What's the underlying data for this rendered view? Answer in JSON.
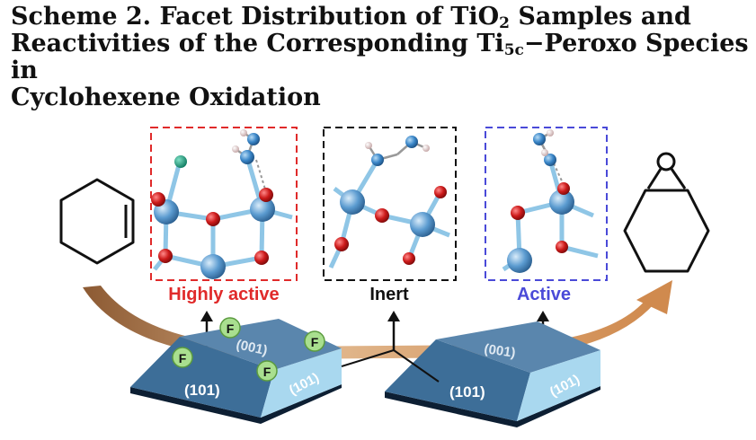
{
  "title": {
    "line1_pre": "Scheme 2. Facet Distribution of TiO",
    "line1_sub": "2",
    "line1_post": " Samples and",
    "line2_pre": "Reactivities of the Corresponding Ti",
    "line2_sub": "5c",
    "line2_post": "−Peroxo Species in",
    "line3": "Cyclohexene Oxidation"
  },
  "panels": {
    "left": {
      "label": "Highly active",
      "color": "#e02a2a"
    },
    "middle": {
      "label": "Inert",
      "color": "#111111"
    },
    "right": {
      "label": "Active",
      "color": "#4a4ad8"
    }
  },
  "crystals": {
    "left": {
      "top_facet": "(001)",
      "front_facet": "(101)",
      "side_facet": "(101)"
    },
    "right": {
      "top_facet": "(001)",
      "front_facet": "(101)",
      "side_facet": "(101)"
    }
  },
  "fluorine_label": "F",
  "colors": {
    "ti": "#5b9bd0",
    "oxygen": "#cc1a1a",
    "nitrogen": "#3a86c8",
    "hydrogen": "#e8cfcf",
    "fluorine_atom": "#16a085",
    "fluorine_badge": "#a9df8f",
    "arrow": "#d2894e",
    "crystal_top": "#5a86ad",
    "crystal_side": "#2d5e8a",
    "crystal_facet": "#a9d8ef"
  }
}
